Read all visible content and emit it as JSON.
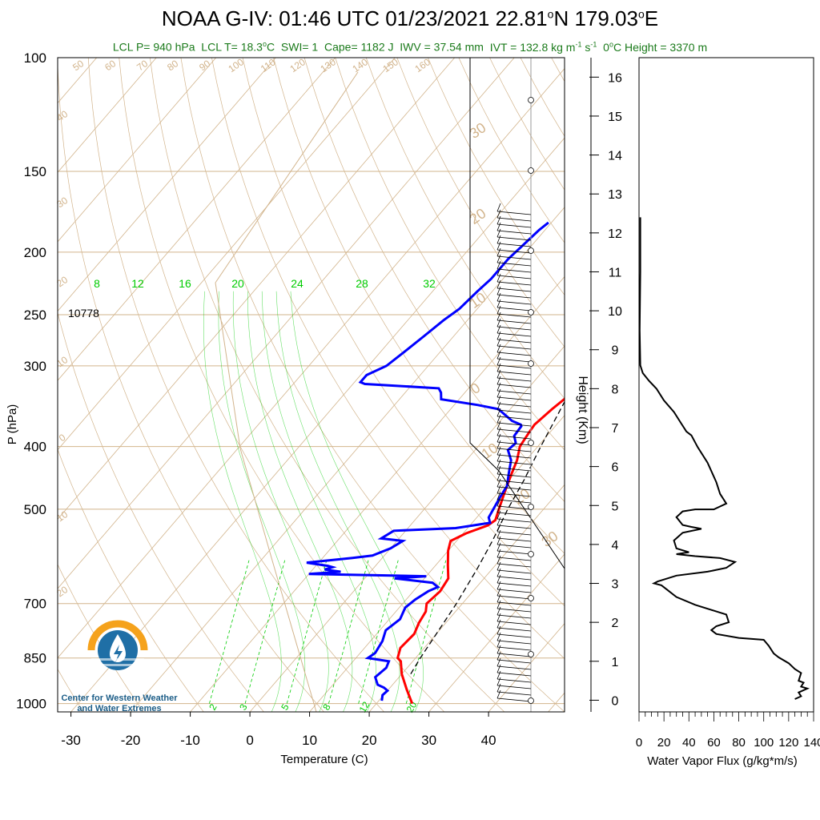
{
  "header": {
    "title_parts": {
      "a": "NOAA G-IV: 01:46 UTC 01/23/2021  22.81",
      "b": "N 179.03",
      "c": "E"
    },
    "degree_sign": "o",
    "subtitle": {
      "lcl_p": "LCL P= 940 hPa",
      "lcl_t": "LCL T= 18.3",
      "lcl_t_unit": "C",
      "swi": "SWI= 1",
      "cape": "Cape= 1182 J",
      "iwv": "IWV = 37.54 mm",
      "ivt": "IVT = 132.8 kg m",
      "ivt_exp1": "-1",
      "ivt_s": " s",
      "ivt_exp2": "-1",
      "zero_c": "0",
      "zero_c_rest": "C Height = 3370 m"
    }
  },
  "logo": {
    "line1": "Center for Western Weather",
    "line2": "and Water Extremes"
  },
  "colors": {
    "temperature": "#ff0000",
    "dewpoint": "#0000ff",
    "parcel": "#000000",
    "isotherm": "#d2b48c",
    "dry_adiabat": "#d2b48c",
    "mixing_ratio": "#00cc00",
    "subtitle": "#1a7a1a",
    "logo_orange": "#f5a21c",
    "logo_blue": "#1f6fa6"
  },
  "chart_data": [
    {
      "type": "line",
      "title": "",
      "xlabel": "Temperature (C)",
      "ylabel": "P (hPa)",
      "xlim": [
        -33,
        52
      ],
      "ylim": [
        1000,
        100
      ],
      "y_scale": "log",
      "x_ticks": [
        "-30",
        "-20",
        "-10",
        "0",
        "10",
        "20",
        "30",
        "40"
      ],
      "y_ticks": [
        "100",
        "150",
        "200",
        "250",
        "300",
        "400",
        "500",
        "700",
        "850",
        "1000"
      ],
      "height_label_value": "10778",
      "isotherm_labels": [
        "50",
        "60",
        "70",
        "80",
        "90",
        "100",
        "110",
        "120",
        "130",
        "140",
        "150",
        "160",
        "40",
        "30",
        "20",
        "10",
        "0",
        "10",
        "20",
        "30",
        "20",
        "10",
        "0",
        "10",
        "20",
        "30"
      ],
      "mixing_ratio_top_labels": [
        "8",
        "12",
        "16",
        "20",
        "24",
        "28",
        "32"
      ],
      "mixing_ratio_bottom_labels": [
        "2",
        "3",
        "5",
        "8",
        "12",
        "20"
      ],
      "series": [
        {
          "name": "",
          "role": "temperature",
          "points": [
            [
              26,
              1000
            ],
            [
              23,
              950
            ],
            [
              20,
              900
            ],
            [
              18.5,
              870
            ],
            [
              18,
              860
            ],
            [
              17,
              850
            ],
            [
              16,
              820
            ],
            [
              16.3,
              780
            ],
            [
              15.5,
              750
            ],
            [
              15,
              720
            ],
            [
              14,
              700
            ],
            [
              14.5,
              670
            ],
            [
              14,
              640
            ],
            [
              12,
              610
            ],
            [
              10,
              580
            ],
            [
              9,
              560
            ],
            [
              10.5,
              545
            ],
            [
              13,
              530
            ],
            [
              13.5,
              520
            ],
            [
              12.5,
              500
            ],
            [
              11,
              470
            ],
            [
              9.5,
              440
            ],
            [
              8.5,
              420
            ],
            [
              7,
              400
            ],
            [
              6.5,
              380
            ],
            [
              6.3,
              370
            ],
            [
              7,
              350
            ],
            [
              8,
              330
            ],
            [
              9,
              320
            ],
            [
              10,
              310
            ],
            [
              9,
              300
            ],
            [
              8.5,
              285
            ],
            [
              8.5,
              270
            ],
            [
              6.5,
              255
            ],
            [
              5,
              245
            ],
            [
              4.5,
              230
            ],
            [
              4.3,
              220
            ],
            [
              3.5,
              205
            ],
            [
              3.5,
              195
            ],
            [
              3,
              188
            ],
            [
              2.5,
              180
            ]
          ]
        },
        {
          "name": "",
          "role": "dewpoint",
          "points": [
            [
              20.5,
              990
            ],
            [
              19.8,
              970
            ],
            [
              20,
              955
            ],
            [
              19,
              945
            ],
            [
              17.5,
              935
            ],
            [
              16,
              910
            ],
            [
              16.5,
              880
            ],
            [
              16,
              860
            ],
            [
              12,
              850
            ],
            [
              12.5,
              835
            ],
            [
              12,
              800
            ],
            [
              11,
              770
            ],
            [
              11.8,
              740
            ],
            [
              11,
              710
            ],
            [
              11.5,
              690
            ],
            [
              12.5,
              670
            ],
            [
              13.5,
              660
            ],
            [
              12,
              650
            ],
            [
              5,
              640
            ],
            [
              10,
              635
            ],
            [
              -10,
              630
            ],
            [
              -5,
              625
            ],
            [
              -8,
              620
            ],
            [
              -7,
              615
            ],
            [
              -8,
              612
            ],
            [
              -12,
              605
            ],
            [
              -5,
              595
            ],
            [
              -2,
              590
            ],
            [
              0,
              575
            ],
            [
              1,
              560
            ],
            [
              -3,
              555
            ],
            [
              -2,
              540
            ],
            [
              8,
              535
            ],
            [
              13,
              525
            ],
            [
              12,
              515
            ],
            [
              11,
              480
            ],
            [
              10.5,
              460
            ],
            [
              9,
              440
            ],
            [
              7.5,
              420
            ],
            [
              5.5,
              405
            ],
            [
              5.8,
              395
            ],
            [
              4.5,
              385
            ],
            [
              4.3,
              372
            ],
            [
              4,
              370
            ],
            [
              2,
              365
            ],
            [
              -2,
              350
            ],
            [
              -6,
              345
            ],
            [
              -13,
              338
            ],
            [
              -14,
              330
            ],
            [
              -15,
              325
            ],
            [
              -28,
              320
            ],
            [
              -29,
              318
            ],
            [
              -29,
              310
            ],
            [
              -27,
              300
            ],
            [
              -26,
              285
            ],
            [
              -25,
              270
            ],
            [
              -24,
              255
            ],
            [
              -23,
              245
            ],
            [
              -22.5,
              230
            ],
            [
              -22,
              220
            ],
            [
              -22,
              205
            ],
            [
              -21.5,
              195
            ],
            [
              -21,
              185
            ],
            [
              -20.5,
              180
            ]
          ]
        },
        {
          "name": "",
          "role": "parcel",
          "points": [
            [
              21.5,
              900
            ],
            [
              20.8,
              850
            ],
            [
              20,
              780
            ],
            [
              19,
              700
            ],
            [
              17.5,
              620
            ],
            [
              16,
              560
            ],
            [
              14,
              500
            ],
            [
              12.5,
              450
            ],
            [
              10.5,
              400
            ],
            [
              8,
              340
            ],
            [
              7.5,
              330
            ]
          ]
        }
      ]
    },
    {
      "type": "line",
      "title": "",
      "xlabel": "Water Vapor Flux (g/kg*m/s)",
      "ylabel": "Height (Km)",
      "xlim": [
        0,
        140
      ],
      "ylim": [
        -0.3,
        16.5
      ],
      "x_ticks": [
        "0",
        "20",
        "40",
        "60",
        "80",
        "100",
        "120",
        "140"
      ],
      "y_ticks": [
        "0",
        "1",
        "2",
        "3",
        "4",
        "5",
        "6",
        "7",
        "8",
        "9",
        "10",
        "11",
        "12",
        "13",
        "14",
        "15",
        "16"
      ],
      "series": [
        {
          "name": "",
          "points": [
            [
              1,
              12.4
            ],
            [
              1,
              11
            ],
            [
              0.5,
              9.5
            ],
            [
              1,
              8.6
            ],
            [
              3,
              8.4
            ],
            [
              8,
              8.2
            ],
            [
              14,
              8.0
            ],
            [
              20,
              7.7
            ],
            [
              28,
              7.4
            ],
            [
              34,
              7.1
            ],
            [
              38,
              6.9
            ],
            [
              42,
              6.8
            ],
            [
              47,
              6.5
            ],
            [
              55,
              6.1
            ],
            [
              62,
              5.6
            ],
            [
              65,
              5.3
            ],
            [
              70,
              5.05
            ],
            [
              60,
              4.9
            ],
            [
              45,
              4.9
            ],
            [
              35,
              4.85
            ],
            [
              30,
              4.7
            ],
            [
              35,
              4.5
            ],
            [
              42,
              4.45
            ],
            [
              50,
              4.4
            ],
            [
              35,
              4.3
            ],
            [
              28,
              4.1
            ],
            [
              30,
              3.9
            ],
            [
              40,
              3.8
            ],
            [
              30,
              3.75
            ],
            [
              45,
              3.7
            ],
            [
              65,
              3.65
            ],
            [
              77,
              3.55
            ],
            [
              70,
              3.4
            ],
            [
              55,
              3.3
            ],
            [
              30,
              3.2
            ],
            [
              20,
              3.1
            ],
            [
              15,
              3.05
            ],
            [
              12,
              3.0
            ],
            [
              18,
              2.95
            ],
            [
              22,
              2.85
            ],
            [
              30,
              2.65
            ],
            [
              45,
              2.45
            ],
            [
              60,
              2.3
            ],
            [
              70,
              2.2
            ],
            [
              72,
              2.0
            ],
            [
              62,
              1.9
            ],
            [
              58,
              1.8
            ],
            [
              62,
              1.7
            ],
            [
              80,
              1.6
            ],
            [
              100,
              1.55
            ],
            [
              104,
              1.4
            ],
            [
              108,
              1.2
            ],
            [
              112,
              1.1
            ],
            [
              120,
              0.95
            ],
            [
              125,
              0.8
            ],
            [
              130,
              0.7
            ],
            [
              128,
              0.5
            ],
            [
              132,
              0.45
            ],
            [
              130,
              0.35
            ],
            [
              135,
              0.3
            ],
            [
              128,
              0.2
            ],
            [
              130,
              0.1
            ],
            [
              125,
              0.03
            ]
          ]
        }
      ]
    }
  ]
}
